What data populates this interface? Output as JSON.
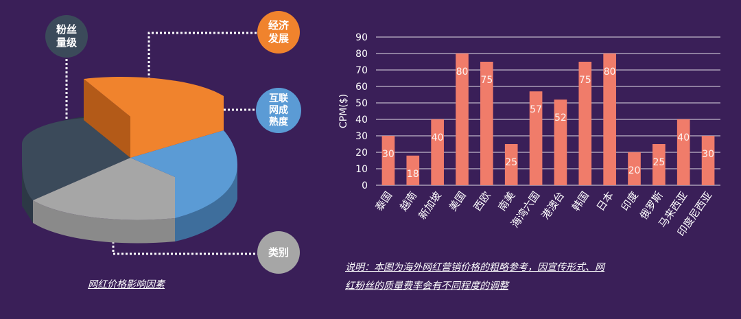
{
  "factors": {
    "fans": "粉丝\n量级",
    "economy": "经济\n发展",
    "internet": "互联\n网成\n熟度",
    "category": "类别",
    "caption": "网红价格影响因素"
  },
  "colors": {
    "background": "#3a1f58",
    "bar": "#f07c6a",
    "orange": "#f0832d",
    "blue": "#5b9bd5",
    "gray": "#a6a6a6",
    "darkslate": "#3b4a5a"
  },
  "chart_data": [
    {
      "type": "pie",
      "slices": [
        {
          "label": "经济发展",
          "color": "#f0832d"
        },
        {
          "label": "互联网成熟度",
          "color": "#5b9bd5"
        },
        {
          "label": "类别",
          "color": "#a6a6a6"
        },
        {
          "label": "粉丝量级",
          "color": "#3b4a5a"
        }
      ]
    },
    {
      "type": "bar",
      "categories": [
        "泰国",
        "越南",
        "新加坡",
        "美国",
        "西欧",
        "南美",
        "海湾六国",
        "港澳台",
        "韩国",
        "日本",
        "印度",
        "俄罗斯",
        "马来西亚",
        "印度尼西亚"
      ],
      "values": [
        30,
        18,
        40,
        80,
        75,
        25,
        57,
        52,
        75,
        80,
        20,
        25,
        40,
        30
      ],
      "ylabel": "CPM($)",
      "ylim": [
        0,
        90
      ],
      "yticks": [
        0,
        10,
        20,
        30,
        40,
        50,
        60,
        70,
        80,
        90
      ],
      "grid": true
    }
  ],
  "note": {
    "line1": "说明：本图为海外网红营销价格的粗略参考，因宣传形式、网",
    "line2": "红粉丝的质量费率会有不同程度的调整"
  }
}
